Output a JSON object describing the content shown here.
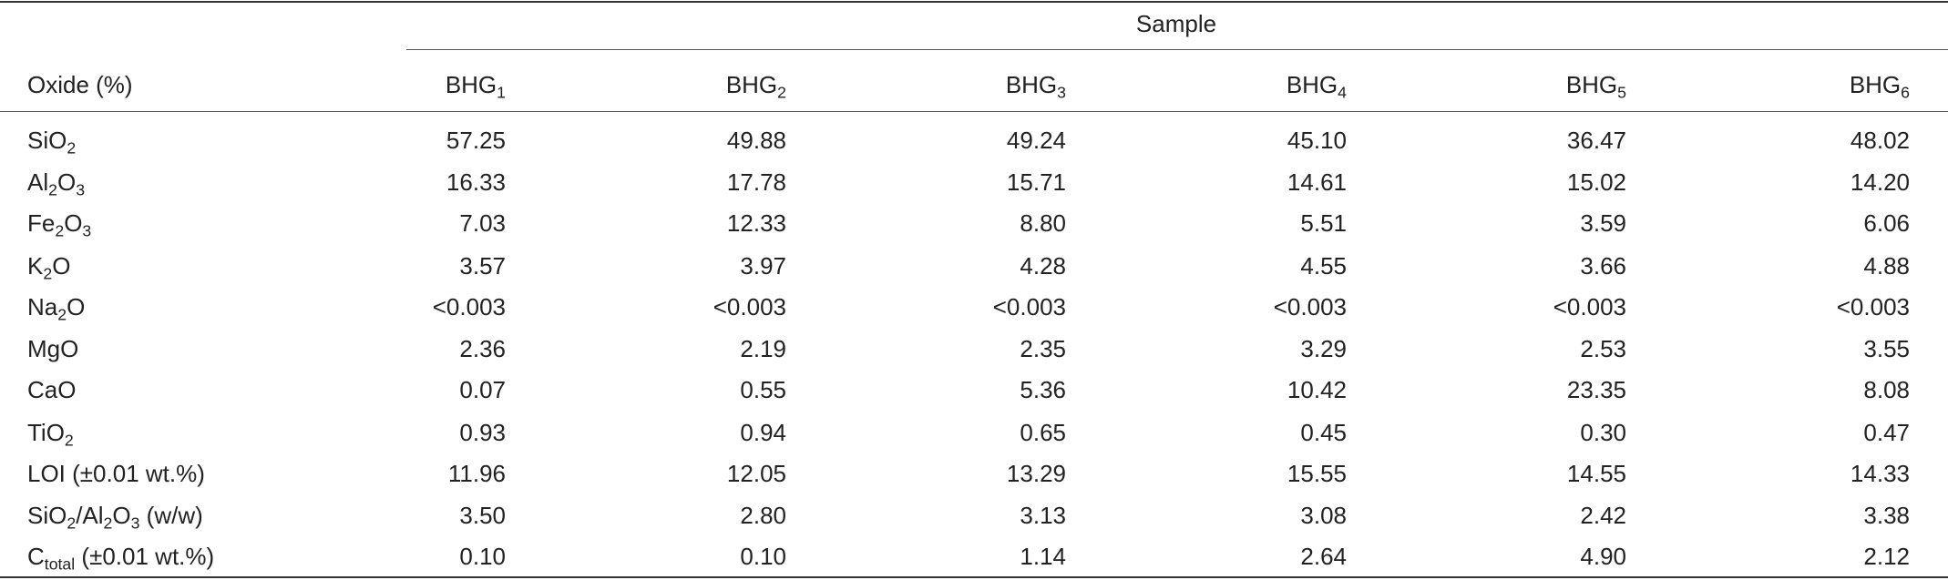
{
  "table": {
    "spanner": "Sample",
    "stub_header": "Oxide (%)",
    "columns": [
      [
        {
          "t": "BHG"
        },
        {
          "sub": "1"
        }
      ],
      [
        {
          "t": "BHG"
        },
        {
          "sub": "2"
        }
      ],
      [
        {
          "t": "BHG"
        },
        {
          "sub": "3"
        }
      ],
      [
        {
          "t": "BHG"
        },
        {
          "sub": "4"
        }
      ],
      [
        {
          "t": "BHG"
        },
        {
          "sub": "5"
        }
      ],
      [
        {
          "t": "BHG"
        },
        {
          "sub": "6"
        }
      ]
    ],
    "rows": [
      {
        "label": [
          {
            "t": "SiO"
          },
          {
            "sub": "2"
          }
        ],
        "values": [
          "57.25",
          "49.88",
          "49.24",
          "45.10",
          "36.47",
          "48.02"
        ]
      },
      {
        "label": [
          {
            "t": "Al"
          },
          {
            "sub": "2"
          },
          {
            "t": "O"
          },
          {
            "sub": "3"
          }
        ],
        "values": [
          "16.33",
          "17.78",
          "15.71",
          "14.61",
          "15.02",
          "14.20"
        ]
      },
      {
        "label": [
          {
            "t": "Fe"
          },
          {
            "sub": "2"
          },
          {
            "t": "O"
          },
          {
            "sub": "3"
          }
        ],
        "values": [
          "7.03",
          "12.33",
          "8.80",
          "5.51",
          "3.59",
          "6.06"
        ]
      },
      {
        "label": [
          {
            "t": "K"
          },
          {
            "sub": "2"
          },
          {
            "t": "O"
          }
        ],
        "values": [
          "3.57",
          "3.97",
          "4.28",
          "4.55",
          "3.66",
          "4.88"
        ]
      },
      {
        "label": [
          {
            "t": "Na"
          },
          {
            "sub": "2"
          },
          {
            "t": "O"
          }
        ],
        "values": [
          "<0.003",
          "<0.003",
          "<0.003",
          "<0.003",
          "<0.003",
          "<0.003"
        ]
      },
      {
        "label": [
          {
            "t": "MgO"
          }
        ],
        "values": [
          "2.36",
          "2.19",
          "2.35",
          "3.29",
          "2.53",
          "3.55"
        ]
      },
      {
        "label": [
          {
            "t": "CaO"
          }
        ],
        "values": [
          "0.07",
          "0.55",
          "5.36",
          "10.42",
          "23.35",
          "8.08"
        ]
      },
      {
        "label": [
          {
            "t": "TiO"
          },
          {
            "sub": "2"
          }
        ],
        "values": [
          "0.93",
          "0.94",
          "0.65",
          "0.45",
          "0.30",
          "0.47"
        ]
      },
      {
        "label": [
          {
            "t": "LOI (±0.01 wt.%)"
          }
        ],
        "values": [
          "11.96",
          "12.05",
          "13.29",
          "15.55",
          "14.55",
          "14.33"
        ]
      },
      {
        "label": [
          {
            "t": "SiO"
          },
          {
            "sub": "2"
          },
          {
            "t": "/Al"
          },
          {
            "sub": "2"
          },
          {
            "t": "O"
          },
          {
            "sub": "3"
          },
          {
            "t": " (w/w)"
          }
        ],
        "values": [
          "3.50",
          "2.80",
          "3.13",
          "3.08",
          "2.42",
          "3.38"
        ]
      },
      {
        "label": [
          {
            "t": "C"
          },
          {
            "sub": "total"
          },
          {
            "t": " (±0.01 wt.%)"
          }
        ],
        "values": [
          "0.10",
          "0.10",
          "1.14",
          "2.64",
          "4.90",
          "2.12"
        ]
      }
    ]
  }
}
